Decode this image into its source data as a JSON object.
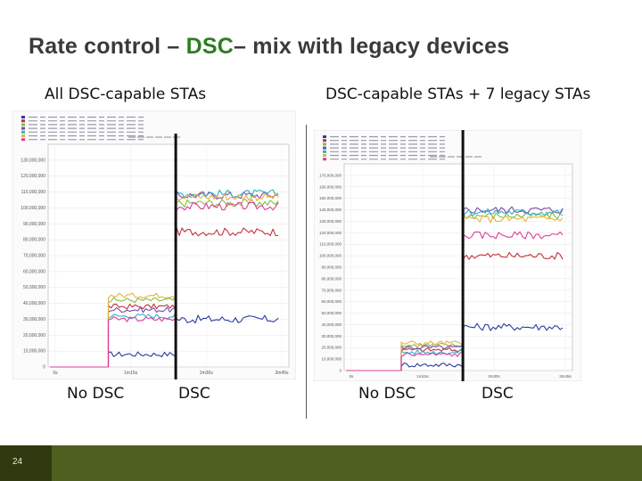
{
  "slide": {
    "title_part1": "Rate control – ",
    "title_accent": "DSC",
    "title_part2": "– mix with legacy devices",
    "accent_color": "#2e7d22",
    "page_number": "24"
  },
  "left_panel": {
    "heading": "All DSC-capable STAs",
    "label_before": "No DSC",
    "label_after": "DSC"
  },
  "right_panel": {
    "heading": "DSC-capable STAs + 7 legacy STAs",
    "label_before": "No DSC",
    "label_after": "DSC"
  },
  "chart_data": [
    {
      "type": "line",
      "ylim": [
        0,
        140000000
      ],
      "yticks": [
        "0",
        "10,000,000",
        "20,000,000",
        "30,000,000",
        "40,000,000",
        "50,000,000",
        "60,000,000",
        "70,000,000",
        "80,000,000",
        "90,000,000",
        "100,000,000",
        "110,000,000",
        "120,000,000",
        "130,000,000"
      ],
      "xticks": [
        "0s",
        "1m15s",
        "2m30s",
        "3m45s"
      ],
      "switch_at": 0.53,
      "series": [
        {
          "color": "#2c3a9c",
          "before": 8000000,
          "after": 30000000
        },
        {
          "color": "#c0323c",
          "before": 38000000,
          "after": 85000000
        },
        {
          "color": "#7fbf3f",
          "before": 42000000,
          "after": 103000000
        },
        {
          "color": "#7a4aa8",
          "before": 36000000,
          "after": 108000000
        },
        {
          "color": "#2fb0c8",
          "before": 32000000,
          "after": 109000000
        },
        {
          "color": "#e8b040",
          "before": 45000000,
          "after": 107000000
        },
        {
          "color": "#e03c9c",
          "before": 30000000,
          "after": 101000000
        }
      ]
    },
    {
      "type": "line",
      "ylim": [
        0,
        180000000
      ],
      "yticks": [
        "0",
        "10,000,000",
        "20,000,000",
        "30,000,000",
        "40,000,000",
        "50,000,000",
        "60,000,000",
        "70,000,000",
        "80,000,000",
        "90,000,000",
        "100,000,000",
        "110,000,000",
        "120,000,000",
        "130,000,000",
        "140,000,000",
        "150,000,000",
        "160,000,000",
        "170,000,000"
      ],
      "xticks": [
        "0s",
        "1m15s",
        "2m30s",
        "3m45s"
      ],
      "switch_at": 0.52,
      "series": [
        {
          "color": "#2c3a9c",
          "before": 5000000,
          "after": 38000000
        },
        {
          "color": "#c0323c",
          "before": 18000000,
          "after": 100000000
        },
        {
          "color": "#7fbf3f",
          "before": 22000000,
          "after": 135000000
        },
        {
          "color": "#7a4aa8",
          "before": 20000000,
          "after": 140000000
        },
        {
          "color": "#2fb0c8",
          "before": 16000000,
          "after": 138000000
        },
        {
          "color": "#e8b040",
          "before": 24000000,
          "after": 132000000
        },
        {
          "color": "#e03c9c",
          "before": 14000000,
          "after": 118000000
        }
      ]
    }
  ]
}
